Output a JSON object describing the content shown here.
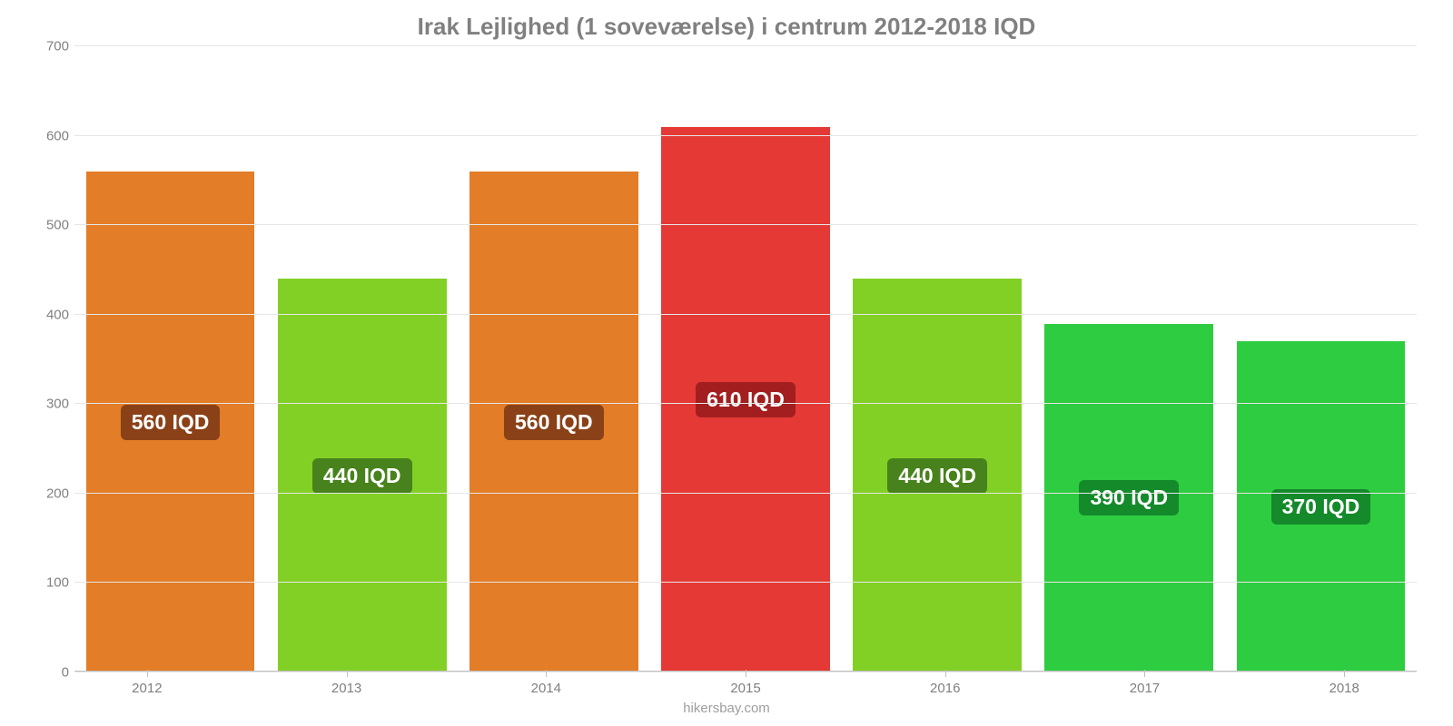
{
  "chart": {
    "type": "bar",
    "title": "Irak Lejlighed (1 soveværelse) i centrum 2012-2018 IQD",
    "title_fontsize": 26,
    "title_color": "#808080",
    "background_color": "#ffffff",
    "grid_color": "#e6e6e6",
    "axis_color": "#bfbfbf",
    "tick_color": "#808080",
    "tick_fontsize": 15,
    "ylim": [
      0,
      700
    ],
    "ytick_step": 100,
    "yticks": [
      0,
      100,
      200,
      300,
      400,
      500,
      600,
      700
    ],
    "bar_width_pct": 88,
    "data_label_fontsize": 23,
    "data_label_radius": 6,
    "credit": "hikersbay.com",
    "credit_color": "#9e9e9e",
    "categories": [
      "2012",
      "2013",
      "2014",
      "2015",
      "2016",
      "2017",
      "2018"
    ],
    "bars": [
      {
        "value": 560,
        "label": "560 IQD",
        "fill": "#e37d27",
        "label_bg": "#8a4117"
      },
      {
        "value": 440,
        "label": "440 IQD",
        "fill": "#82d025",
        "label_bg": "#47821c"
      },
      {
        "value": 560,
        "label": "560 IQD",
        "fill": "#e37d27",
        "label_bg": "#8a4117"
      },
      {
        "value": 610,
        "label": "610 IQD",
        "fill": "#e53935",
        "label_bg": "#a31f1f"
      },
      {
        "value": 440,
        "label": "440 IQD",
        "fill": "#82d025",
        "label_bg": "#47821c"
      },
      {
        "value": 390,
        "label": "390 IQD",
        "fill": "#2ecc40",
        "label_bg": "#148a2b"
      },
      {
        "value": 370,
        "label": "370 IQD",
        "fill": "#2ecc40",
        "label_bg": "#148a2b"
      }
    ]
  }
}
